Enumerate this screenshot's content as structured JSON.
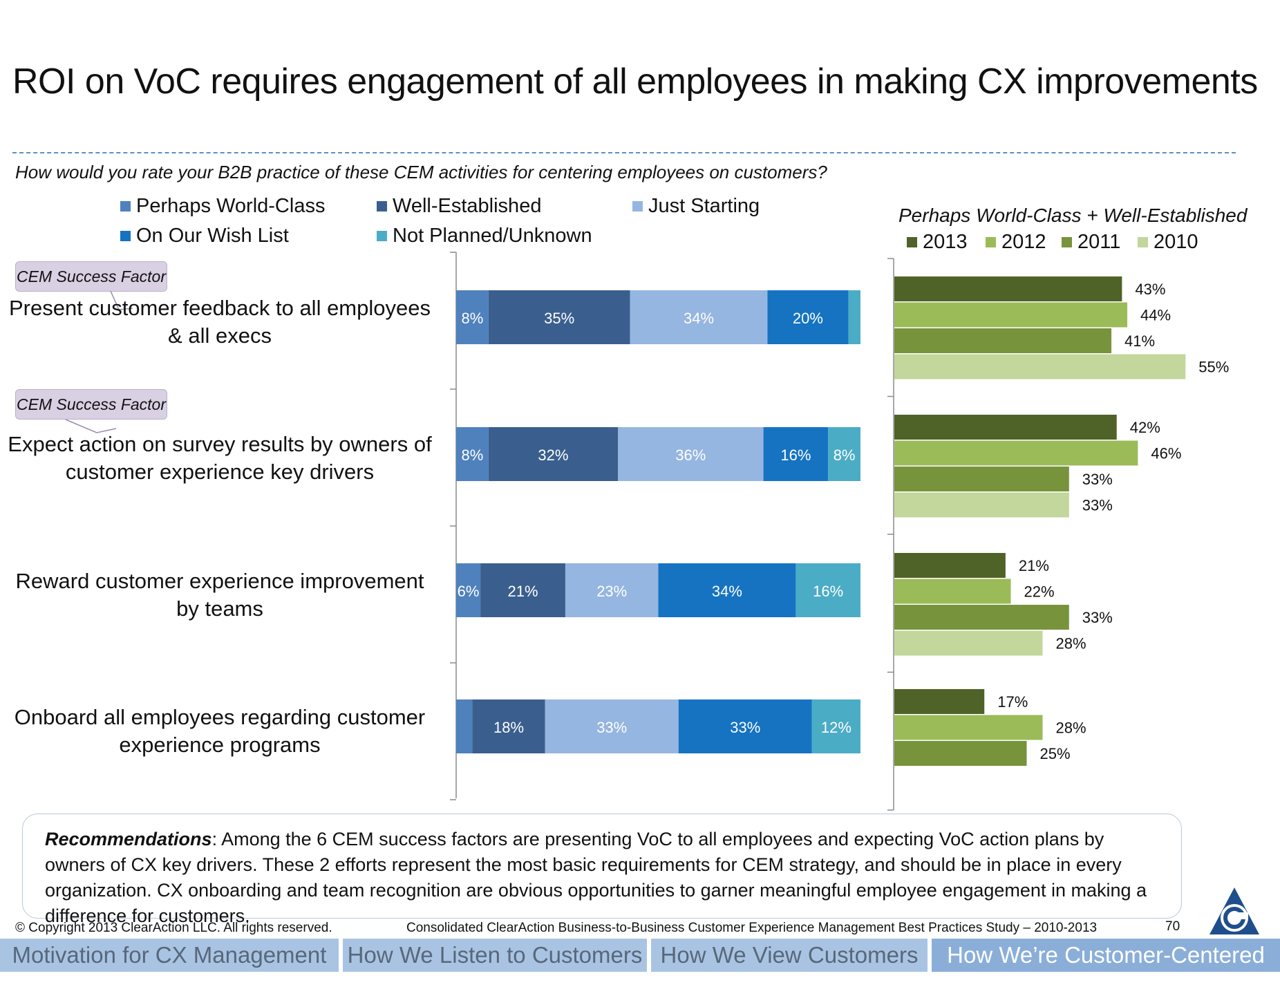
{
  "title": "ROI on VoC requires engagement of all employees in making CX improvements",
  "question": "How would you rate your B2B practice of these CEM activities for centering employees on customers?",
  "legend_left": [
    {
      "label": "Perhaps World-Class",
      "color": "#4f81bd"
    },
    {
      "label": "Well-Established",
      "color": "#3a5f8e"
    },
    {
      "label": "Just Starting",
      "color": "#95b6e0"
    },
    {
      "label": "On Our Wish List",
      "color": "#1573c2"
    },
    {
      "label": "Not Planned/Unknown",
      "color": "#4bacc6"
    }
  ],
  "right_title": "Perhaps World-Class + Well-Established",
  "legend_right": [
    {
      "label": "2013",
      "color": "#4f6228"
    },
    {
      "label": "2012",
      "color": "#9bbb59"
    },
    {
      "label": "2011",
      "color": "#77933c"
    },
    {
      "label": "2010",
      "color": "#c3d69b"
    }
  ],
  "callout_label": "CEM Success Factor",
  "rows": [
    {
      "label_lines": [
        "Present customer feedback to all employees",
        "& all execs"
      ]
    },
    {
      "label_lines": [
        "Expect action on survey results by owners of",
        "customer experience key drivers"
      ]
    },
    {
      "label_lines": [
        "Reward customer experience improvement",
        "by teams"
      ]
    },
    {
      "label_lines": [
        "Onboard all employees regarding customer",
        "experience programs"
      ]
    }
  ],
  "chart_data": [
    {
      "type": "bar",
      "orientation": "horizontal",
      "stacked": true,
      "categories": [
        "Present customer feedback to all employees & all execs",
        "Expect action on survey results by owners of customer experience key drivers",
        "Reward customer experience improvement by teams",
        "Onboard all employees regarding customer experience programs"
      ],
      "series": [
        {
          "name": "Perhaps World-Class",
          "values": [
            8,
            8,
            6,
            4
          ],
          "labels": [
            "8%",
            "8%",
            "6%",
            ""
          ],
          "color": "#4f81bd"
        },
        {
          "name": "Well-Established",
          "values": [
            35,
            32,
            21,
            18
          ],
          "labels": [
            "35%",
            "32%",
            "21%",
            "18%"
          ],
          "color": "#3a5f8e"
        },
        {
          "name": "Just Starting",
          "values": [
            34,
            36,
            23,
            33
          ],
          "labels": [
            "34%",
            "36%",
            "23%",
            "33%"
          ],
          "color": "#95b6e0"
        },
        {
          "name": "On Our Wish List",
          "values": [
            20,
            16,
            34,
            33
          ],
          "labels": [
            "20%",
            "16%",
            "34%",
            "33%"
          ],
          "color": "#1573c2"
        },
        {
          "name": "Not Planned/Unknown",
          "values": [
            3,
            8,
            16,
            12
          ],
          "labels": [
            "",
            "8%",
            "16%",
            "12%"
          ],
          "color": "#4bacc6"
        }
      ],
      "xlim": [
        0,
        100
      ]
    },
    {
      "type": "bar",
      "orientation": "horizontal",
      "grouped": true,
      "title": "Perhaps World-Class + Well-Established",
      "categories": [
        "Present customer feedback to all employees & all execs",
        "Expect action on survey results by owners of customer experience key drivers",
        "Reward customer experience improvement by teams",
        "Onboard all employees regarding customer experience programs"
      ],
      "series": [
        {
          "name": "2013",
          "values": [
            43,
            42,
            21,
            17
          ],
          "color": "#4f6228"
        },
        {
          "name": "2012",
          "values": [
            44,
            46,
            22,
            28
          ],
          "color": "#9bbb59"
        },
        {
          "name": "2011",
          "values": [
            41,
            33,
            33,
            25
          ],
          "color": "#77933c"
        },
        {
          "name": "2010",
          "values": [
            55,
            33,
            28,
            null
          ],
          "color": "#c3d69b"
        }
      ],
      "value_suffix": "%"
    }
  ],
  "recommendation": {
    "heading": "Recommendations",
    "text": ":  Among the 6 CEM success factors are presenting VoC to all employees and expecting VoC action plans by owners of CX key drivers.  These 2 efforts represent the most basic requirements for CEM strategy, and should be in place in every organization. CX onboarding and team recognition are obvious opportunities to garner meaningful employee engagement in making a difference for customers."
  },
  "footer": {
    "copyright": "© Copyright 2013 ClearAction LLC. All rights reserved.",
    "study": "Consolidated ClearAction Business-to-Business Customer Experience Management Best Practices Study – 2010-2013",
    "page": "70"
  },
  "nav_tabs": [
    {
      "label": "Motivation for CX Management",
      "active": false
    },
    {
      "label": "How We Listen to Customers",
      "active": false
    },
    {
      "label": "How We View Customers",
      "active": false
    },
    {
      "label": "How We’re Customer-Centered",
      "active": true
    }
  ]
}
